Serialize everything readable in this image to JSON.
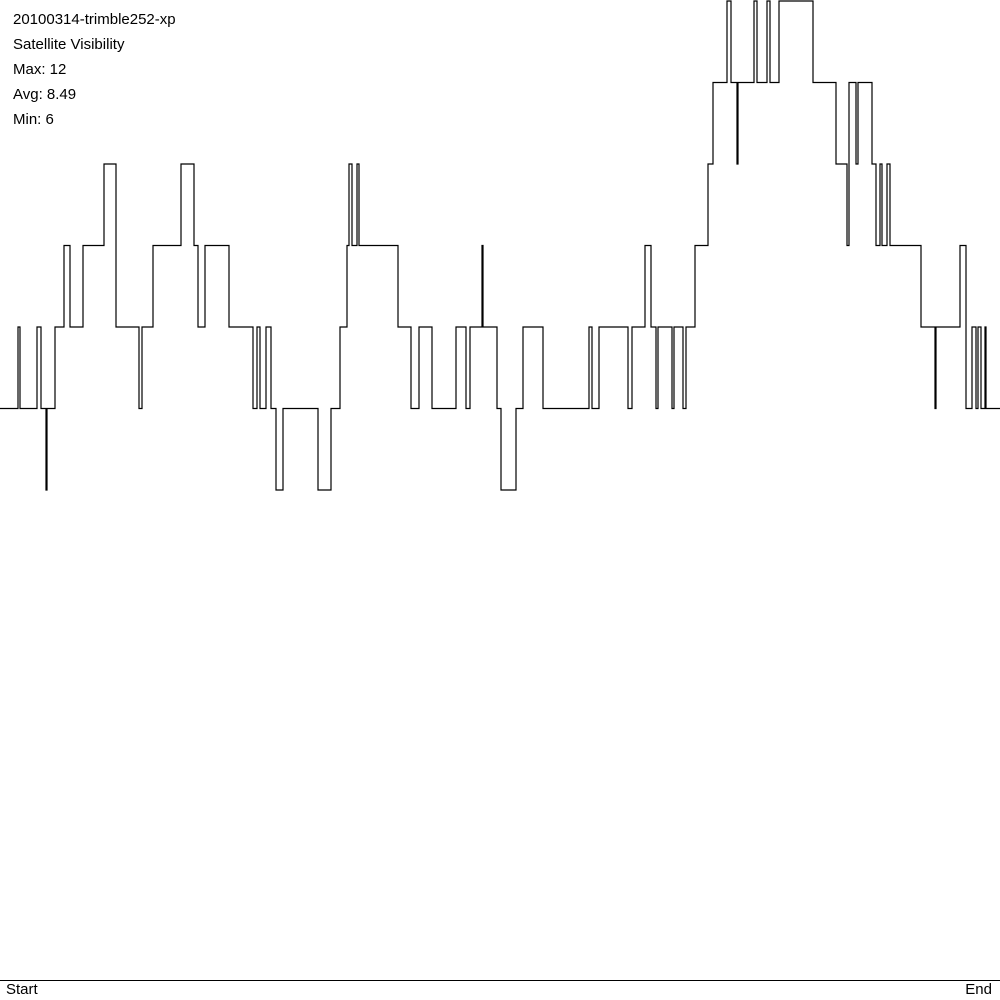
{
  "chart_data": {
    "type": "line",
    "title": "20100314-trimble252-xp",
    "subtitle": "Satellite Visibility",
    "annotations": [
      "Max: 12",
      "Avg: 8.49",
      "Min: 6"
    ],
    "color": "#000000",
    "xlim": [
      0,
      1000
    ],
    "ylim": [
      6,
      12
    ],
    "xticks": [
      {
        "value": 0,
        "label": "Start"
      },
      {
        "value": 1000,
        "label": "End"
      }
    ],
    "x": [
      0,
      18,
      20,
      37,
      41,
      46,
      47,
      55,
      64,
      70,
      83,
      104,
      116,
      139,
      142,
      153,
      181,
      194,
      198,
      205,
      229,
      253,
      257,
      260,
      266,
      271,
      276,
      283,
      318,
      331,
      340,
      347,
      349,
      352,
      357,
      359,
      398,
      411,
      419,
      432,
      456,
      466,
      470,
      482,
      483,
      497,
      501,
      516,
      523,
      543,
      589,
      592,
      599,
      604,
      628,
      632,
      645,
      651,
      656,
      658,
      672,
      674,
      683,
      686,
      695,
      708,
      713,
      727,
      731,
      737,
      738,
      754,
      757,
      767,
      770,
      779,
      813,
      836,
      847,
      849,
      856,
      858,
      872,
      876,
      880,
      882,
      887,
      890,
      921,
      935,
      936,
      960,
      966,
      972,
      976,
      978,
      981,
      985,
      986
    ],
    "values": [
      7,
      8,
      7,
      8,
      7,
      6,
      7,
      8,
      9,
      8,
      9,
      10,
      8,
      7,
      8,
      9,
      10,
      9,
      8,
      9,
      8,
      7,
      8,
      7,
      8,
      7,
      6,
      7,
      6,
      7,
      8,
      9,
      10,
      9,
      10,
      9,
      8,
      7,
      8,
      7,
      8,
      7,
      8,
      9,
      8,
      7,
      6,
      7,
      8,
      7,
      8,
      7,
      8,
      8,
      7,
      8,
      9,
      8,
      7,
      8,
      7,
      8,
      7,
      8,
      9,
      10,
      11,
      12,
      11,
      10,
      11,
      12,
      11,
      12,
      11,
      12,
      11,
      10,
      9,
      11,
      10,
      11,
      10,
      9,
      10,
      9,
      10,
      9,
      8,
      7,
      8,
      9,
      7,
      8,
      7,
      8,
      7,
      8,
      7
    ]
  }
}
